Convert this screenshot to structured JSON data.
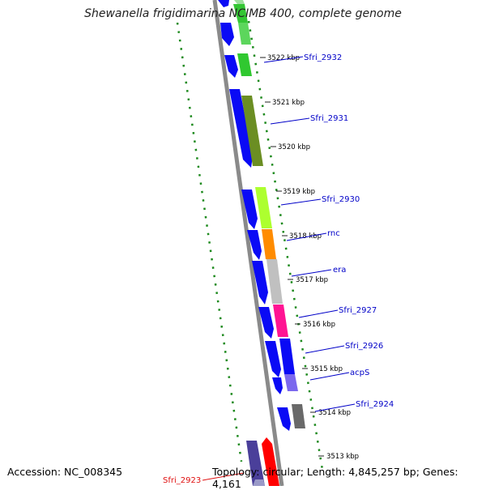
{
  "title": "Shewanella frigidimarina NCIMB 400, complete genome",
  "footer": {
    "accession": "Accession: NC_008345",
    "topology": "Topology: circular; Length: 4,845,257 bp; Genes: 4,161"
  },
  "colors": {
    "backbone": "#8a8a8a",
    "cds": "#0a0af5",
    "gc_skew": "#1e8a1e",
    "label_blue": "#0000c8",
    "label_red": "#e01010"
  },
  "ticks": [
    "3522 kbp",
    "3521 kbp",
    "3520 kbp",
    "3519 kbp",
    "3518 kbp",
    "3517 kbp",
    "3516 kbp",
    "3515 kbp",
    "3514 kbp",
    "3513 kbp"
  ],
  "genes": [
    {
      "label": "Sfri_2932",
      "color": "#30c830"
    },
    {
      "label": "Sfri_2931",
      "color": "#6b8e23"
    },
    {
      "label": "Sfri_2930",
      "color": "#adff2f"
    },
    {
      "label": "rnc",
      "color": "#ff8c00"
    },
    {
      "label": "era",
      "color": "#c0c0c0"
    },
    {
      "label": "Sfri_2927",
      "color": "#ff1493"
    },
    {
      "label": "Sfri_2926",
      "color": "#0a0af5"
    },
    {
      "label": "acpS",
      "color": "#7b68ee"
    },
    {
      "label": "Sfri_2924",
      "color": "#696969"
    },
    {
      "label": "Sfri_2923",
      "color": "#ff0000"
    }
  ]
}
